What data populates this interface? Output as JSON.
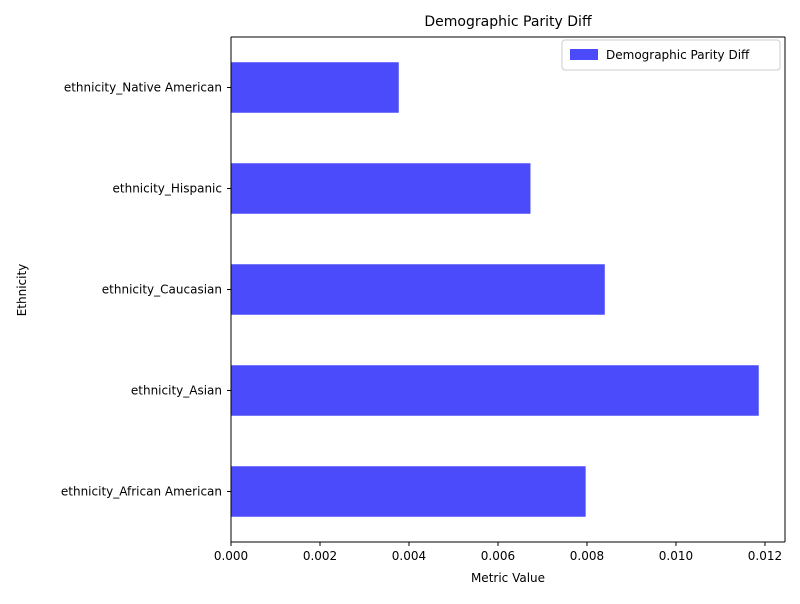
{
  "chart_data": {
    "type": "bar",
    "orientation": "horizontal",
    "title": "Demographic Parity Diff",
    "xlabel": "Metric Value",
    "ylabel": "Ethnicity",
    "categories": [
      "ethnicity_African American",
      "ethnicity_Asian",
      "ethnicity_Caucasian",
      "ethnicity_Hispanic",
      "ethnicity_Native American"
    ],
    "series": [
      {
        "name": "Demographic Parity Diff",
        "values": [
          0.00797,
          0.01186,
          0.0084,
          0.00673,
          0.00377
        ],
        "color": "#4b4bfb"
      }
    ],
    "xlim": [
      0,
      0.01245
    ],
    "xticks": [
      "0.000",
      "0.002",
      "0.004",
      "0.006",
      "0.008",
      "0.010",
      "0.012"
    ],
    "grid": false,
    "legend_position": "top-right"
  }
}
